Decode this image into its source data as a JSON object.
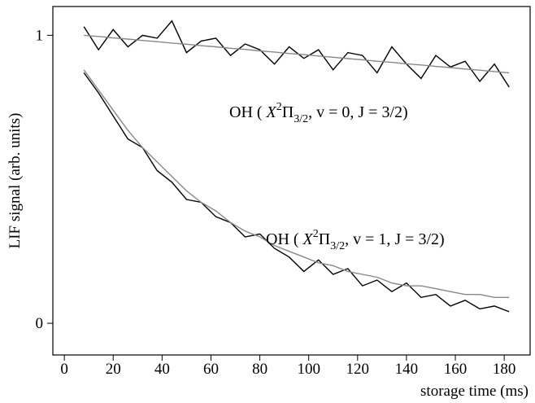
{
  "chart_data": {
    "type": "line",
    "x_label": "storage time (ms)",
    "y_label": "LIF signal (arb. units)",
    "x": [
      8,
      14,
      20,
      26,
      32,
      38,
      44,
      50,
      56,
      62,
      68,
      74,
      80,
      86,
      92,
      98,
      104,
      110,
      116,
      122,
      128,
      134,
      140,
      146,
      152,
      158,
      164,
      170,
      176,
      182
    ],
    "series": [
      {
        "color": "#000000",
        "values": [
          1.03,
          0.95,
          1.02,
          0.96,
          1.0,
          0.99,
          1.05,
          0.94,
          0.98,
          0.99,
          0.93,
          0.97,
          0.95,
          0.9,
          0.96,
          0.92,
          0.95,
          0.88,
          0.94,
          0.93,
          0.87,
          0.96,
          0.9,
          0.85,
          0.93,
          0.89,
          0.91,
          0.84,
          0.9,
          0.82
        ]
      },
      {
        "color": "#888888",
        "values": [
          1.0,
          0.996,
          0.991,
          0.987,
          0.982,
          0.978,
          0.973,
          0.969,
          0.964,
          0.96,
          0.955,
          0.951,
          0.946,
          0.942,
          0.937,
          0.933,
          0.928,
          0.924,
          0.919,
          0.915,
          0.91,
          0.906,
          0.901,
          0.897,
          0.892,
          0.888,
          0.883,
          0.879,
          0.874,
          0.87
        ]
      },
      {
        "color": "#000000",
        "values": [
          0.87,
          0.8,
          0.72,
          0.64,
          0.61,
          0.53,
          0.49,
          0.43,
          0.42,
          0.37,
          0.35,
          0.3,
          0.31,
          0.26,
          0.23,
          0.18,
          0.22,
          0.17,
          0.19,
          0.13,
          0.15,
          0.11,
          0.14,
          0.09,
          0.1,
          0.06,
          0.08,
          0.05,
          0.06,
          0.04
        ]
      },
      {
        "color": "#888888",
        "values": [
          0.88,
          0.81,
          0.74,
          0.67,
          0.61,
          0.56,
          0.51,
          0.46,
          0.42,
          0.39,
          0.35,
          0.32,
          0.3,
          0.27,
          0.25,
          0.23,
          0.21,
          0.2,
          0.18,
          0.17,
          0.16,
          0.14,
          0.13,
          0.13,
          0.12,
          0.11,
          0.1,
          0.1,
          0.09,
          0.09
        ]
      }
    ],
    "xlim": [
      -4.7,
      190.6
    ],
    "ylim": [
      -0.11,
      1.1
    ],
    "xticks": [
      0,
      20,
      40,
      60,
      80,
      100,
      120,
      140,
      160,
      180
    ],
    "yticks": [
      0,
      1
    ],
    "annotations": [
      {
        "prefix": "OH ( ",
        "symbol": "X",
        "sup": "2",
        "main": "Π",
        "sub": "3/2",
        "suffix": ", v = 0, J = 3/2)"
      },
      {
        "prefix": "OH ( ",
        "symbol": "X",
        "sup": "2",
        "main": "Π",
        "sub": "3/2",
        "suffix": ", v = 1, J = 3/2)"
      }
    ]
  }
}
